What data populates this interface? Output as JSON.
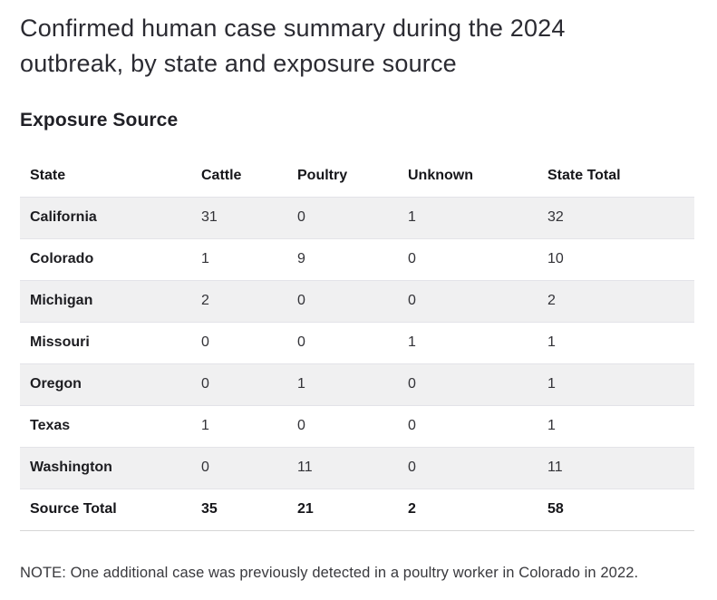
{
  "chart_data": {
    "type": "table",
    "title": "Confirmed human case summary during the 2024 outbreak, by state and exposure source",
    "section_heading": "Exposure Source",
    "columns": [
      "State",
      "Cattle",
      "Poultry",
      "Unknown",
      "State Total"
    ],
    "rows": [
      [
        "California",
        "31",
        "0",
        "1",
        "32"
      ],
      [
        "Colorado",
        "1",
        "9",
        "0",
        "10"
      ],
      [
        "Michigan",
        "2",
        "0",
        "0",
        "2"
      ],
      [
        "Missouri",
        "0",
        "0",
        "1",
        "1"
      ],
      [
        "Oregon",
        "0",
        "1",
        "0",
        "1"
      ],
      [
        "Texas",
        "1",
        "0",
        "0",
        "1"
      ],
      [
        "Washington",
        "0",
        "11",
        "0",
        "11"
      ]
    ],
    "total_row": [
      "Source Total",
      "35",
      "21",
      "2",
      "58"
    ],
    "note": "NOTE: One additional case was previously detected in a poultry worker in Colorado in 2022.",
    "layout_hints": {
      "zebra_striping": "odd rows shaded",
      "grid": "off",
      "totals_bold": true
    }
  },
  "colors": {
    "stripe_background": "#f0f0f1",
    "stripe_border": "#e3e3e8",
    "table_bottom_divider": "#d6d6d6",
    "title_text": "#2b2b32",
    "header_text": "#16161a",
    "value_text": "#323237",
    "note_text": "#39393d"
  }
}
